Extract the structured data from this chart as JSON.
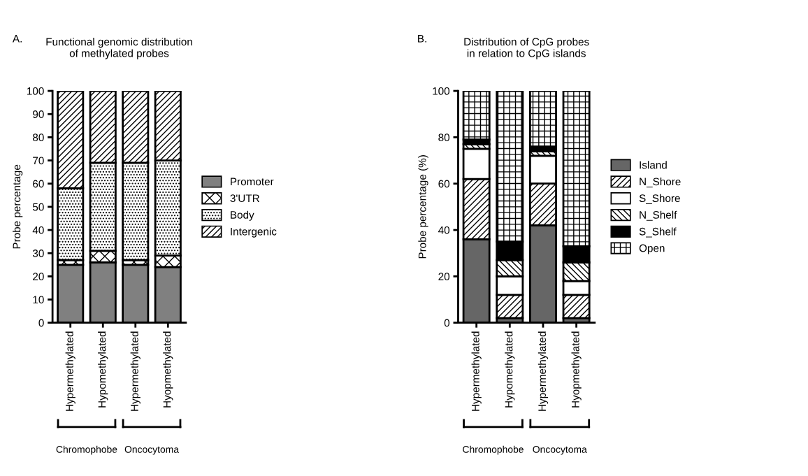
{
  "chart_data": [
    {
      "type": "bar",
      "stacked": true,
      "title": "Functional genomic distribution\nof methylated probes",
      "ylabel": "Probe percentage",
      "categories": [
        "Hypermethylated",
        "Hypomethylated",
        "Hypermethylated",
        "Hyopmethylated"
      ],
      "series": [
        {
          "name": "Promoter",
          "color": "#808080",
          "values": [
            25,
            26,
            25,
            24
          ]
        },
        {
          "name": "3'UTR",
          "color": "#000000",
          "values": [
            2,
            5,
            2,
            5
          ]
        },
        {
          "name": "Body",
          "color": "#000000",
          "values": [
            31,
            38,
            42,
            41
          ]
        },
        {
          "name": "Intergenic",
          "color": "#000000",
          "values": [
            42,
            31,
            31,
            30
          ]
        }
      ],
      "ylim": [
        0,
        100
      ],
      "yticks": [
        0,
        10,
        20,
        30,
        40,
        50,
        60,
        70,
        80,
        90,
        100
      ],
      "grid": false,
      "legend": "right",
      "annotations": [
        "A.",
        "Chromophobe",
        "Oncocytoma"
      ]
    },
    {
      "type": "bar",
      "stacked": true,
      "title": "Distribution of CpG probes\nin relation to CpG islands",
      "ylabel": "Probe percentage (%)",
      "categories": [
        "Hypermethylated",
        "Hypomethylated",
        "Hypermethylated",
        "Hyopmethylated"
      ],
      "series": [
        {
          "name": "Island",
          "color": "#666666",
          "values": [
            36,
            2,
            42,
            2
          ]
        },
        {
          "name": "N_Shore",
          "color": "#000000",
          "values": [
            26,
            10,
            18,
            10
          ]
        },
        {
          "name": "S_Shore",
          "color": "#ffffff",
          "values": [
            13,
            8,
            12,
            6
          ]
        },
        {
          "name": "N_Shelf",
          "color": "#000000",
          "values": [
            2,
            7,
            2,
            8
          ]
        },
        {
          "name": "S_Shelf",
          "color": "#000000",
          "values": [
            2,
            8,
            2,
            7
          ]
        },
        {
          "name": "Open",
          "color": "#000000",
          "values": [
            21,
            65,
            24,
            67
          ]
        }
      ],
      "ylim": [
        0,
        100
      ],
      "yticks": [
        0,
        20,
        40,
        60,
        80,
        100
      ],
      "grid": false,
      "legend": "right",
      "annotations": [
        "B.",
        "Chromophobe",
        "Oncocytoma"
      ]
    }
  ]
}
